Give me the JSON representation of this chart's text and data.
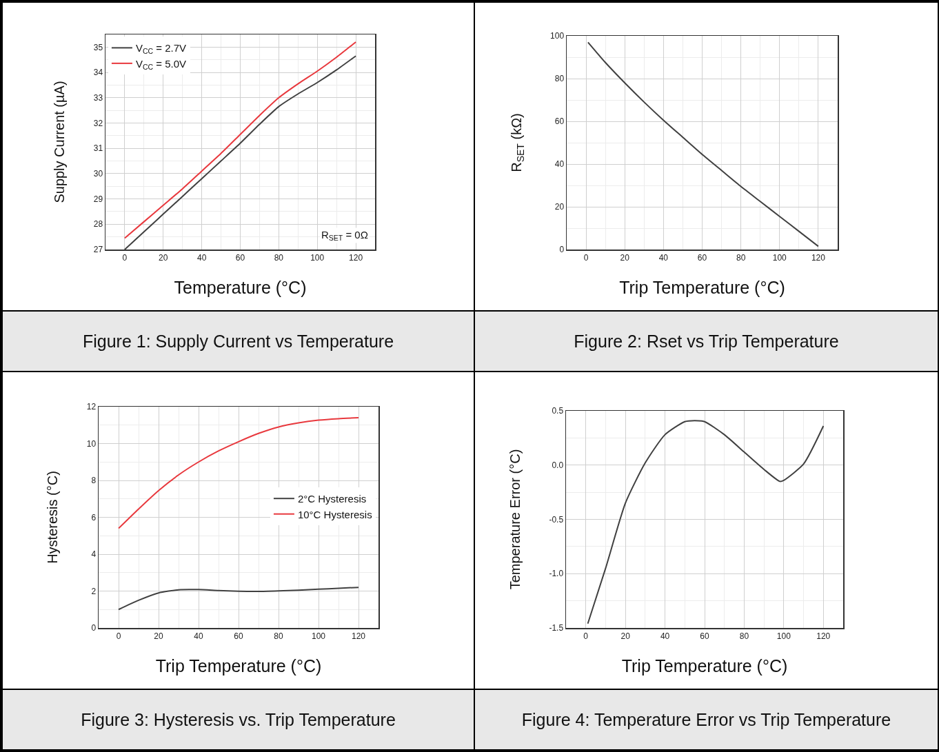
{
  "chart_data": [
    {
      "type": "line",
      "xlabel": "Temperature (°C)",
      "ylabel": "Supply Current (µA)",
      "x": [
        0,
        10,
        20,
        30,
        40,
        50,
        60,
        70,
        80,
        90,
        100,
        110,
        120
      ],
      "series": [
        {
          "name": "V$_{CC}$ = 2.7V",
          "color": "#404040",
          "values": [
            27.0,
            27.7,
            28.4,
            29.1,
            29.8,
            30.5,
            31.2,
            31.95,
            32.65,
            33.15,
            33.6,
            34.1,
            34.65
          ]
        },
        {
          "name": "V$_{CC}$ = 5.0V",
          "color": "#e8383d",
          "values": [
            27.45,
            28.1,
            28.75,
            29.4,
            30.1,
            30.8,
            31.55,
            32.3,
            33.0,
            33.55,
            34.05,
            34.6,
            35.2
          ]
        }
      ],
      "xlim": [
        -10,
        130
      ],
      "xticks": [
        0,
        20,
        40,
        60,
        80,
        100,
        120
      ],
      "ylim": [
        27,
        35.5
      ],
      "yticks": [
        27,
        28,
        29,
        30,
        31,
        32,
        33,
        34,
        35
      ],
      "grid": true,
      "legend": "top left",
      "annotations": [
        "R$_{SET}$ = 0Ω",
        "Figure 1: Supply Current vs Temperature"
      ]
    },
    {
      "type": "line",
      "xlabel": "Trip Temperature (°C)",
      "ylabel": "R$_{SET}$ (kΩ)",
      "x": [
        1,
        10,
        20,
        30,
        40,
        50,
        60,
        70,
        80,
        90,
        100,
        110,
        120
      ],
      "series": [
        {
          "color": "#404040",
          "values": [
            97,
            87.5,
            78,
            69,
            60.5,
            52.5,
            44.5,
            37,
            29.5,
            22.5,
            15.5,
            8.5,
            1.5
          ]
        }
      ],
      "xlim": [
        -10,
        130
      ],
      "xticks": [
        0,
        20,
        40,
        60,
        80,
        100,
        120
      ],
      "ylim": [
        0,
        100
      ],
      "yticks": [
        0,
        20,
        40,
        60,
        80,
        100
      ],
      "grid": true,
      "annotations": [
        "Figure 2: Rset vs Trip Temperature"
      ]
    },
    {
      "type": "line",
      "xlabel": "Trip Temperature (°C)",
      "ylabel": "Hysteresis (°C)",
      "x": [
        0,
        10,
        20,
        30,
        40,
        50,
        60,
        70,
        80,
        90,
        100,
        110,
        120
      ],
      "series": [
        {
          "name": "2°C Hysteresis",
          "color": "#404040",
          "values": [
            1.0,
            1.5,
            1.9,
            2.07,
            2.08,
            2.03,
            1.99,
            1.98,
            2.01,
            2.05,
            2.1,
            2.15,
            2.2
          ]
        },
        {
          "name": "10°C Hysteresis",
          "color": "#e8383d",
          "values": [
            5.4,
            6.45,
            7.45,
            8.3,
            9.0,
            9.6,
            10.1,
            10.55,
            10.9,
            11.12,
            11.27,
            11.35,
            11.4
          ]
        }
      ],
      "xlim": [
        -10,
        130
      ],
      "xticks": [
        0,
        20,
        40,
        60,
        80,
        100,
        120
      ],
      "ylim": [
        0,
        12
      ],
      "yticks": [
        0,
        2,
        4,
        6,
        8,
        10,
        12
      ],
      "grid": true,
      "legend": "right",
      "annotations": [
        "Figure 3: Hysteresis vs. Trip Temperature"
      ]
    },
    {
      "type": "line",
      "xlabel": "Trip Temperature (°C)",
      "ylabel": "Temperature Error (°C)",
      "x": [
        1,
        10,
        20,
        30,
        40,
        50,
        55,
        60,
        70,
        80,
        90,
        98,
        100,
        110,
        120
      ],
      "series": [
        {
          "color": "#404040",
          "values": [
            -1.46,
            -0.95,
            -0.35,
            0.02,
            0.28,
            0.4,
            0.41,
            0.4,
            0.28,
            0.12,
            -0.04,
            -0.15,
            -0.14,
            0.01,
            0.36
          ]
        }
      ],
      "xlim": [
        -10,
        130
      ],
      "xticks": [
        0,
        20,
        40,
        60,
        80,
        100,
        120
      ],
      "ylim": [
        -1.5,
        0.5
      ],
      "yticks": [
        {
          "value": -1.5,
          "label": "-1.5"
        },
        {
          "value": -1,
          "label": "-1.0"
        },
        {
          "value": -0.5,
          "label": "-0.5"
        },
        {
          "value": 0,
          "label": "0.0"
        },
        {
          "value": 0.5,
          "label": "0.5"
        }
      ],
      "grid": true,
      "annotations": [
        "Figure 4: Temperature Error vs Trip Temperature"
      ]
    }
  ]
}
